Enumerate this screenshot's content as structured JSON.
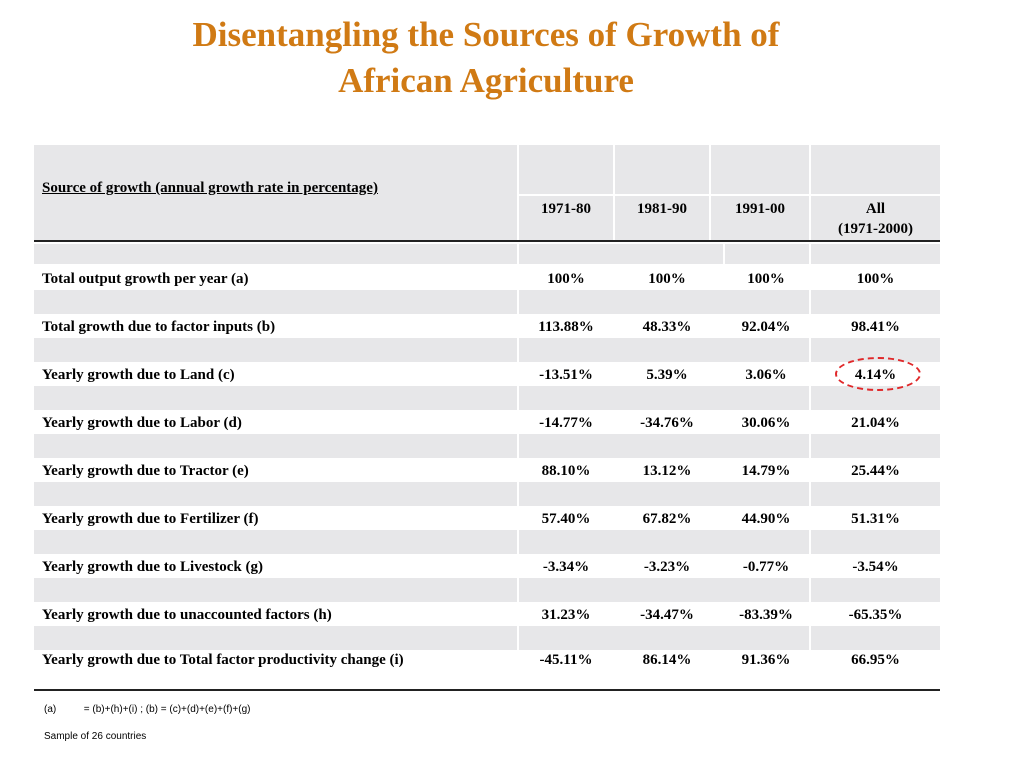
{
  "title": {
    "line1": "Disentangling the Sources of Growth of",
    "line2": "African Agriculture"
  },
  "table": {
    "header_label": "Source of growth (annual growth rate in percentage)",
    "columns": [
      "1971-80",
      "1981-90",
      "1991-00"
    ],
    "all_column": {
      "line1": "All",
      "line2": "(1971-2000)"
    },
    "rows": [
      {
        "label": "Total output growth per year  (a)",
        "values": [
          "100%",
          "100%",
          "100%",
          "100%"
        ]
      },
      {
        "label": "Total growth due to factor inputs  (b)",
        "values": [
          "113.88%",
          "48.33%",
          "92.04%",
          "98.41%"
        ]
      },
      {
        "label": "Yearly growth due to Land  (c)",
        "values": [
          "-13.51%",
          "5.39%",
          "3.06%",
          "4.14%"
        ]
      },
      {
        "label": "Yearly growth due to Labor  (d)",
        "values": [
          "-14.77%",
          "-34.76%",
          "30.06%",
          "21.04%"
        ]
      },
      {
        "label": "Yearly growth due to Tractor  (e)",
        "values": [
          "88.10%",
          "13.12%",
          "14.79%",
          "25.44%"
        ]
      },
      {
        "label": "Yearly growth due to Fertilizer  (f)",
        "values": [
          "57.40%",
          "67.82%",
          "44.90%",
          "51.31%"
        ]
      },
      {
        "label": "Yearly growth due to Livestock  (g)",
        "values": [
          "-3.34%",
          "-3.23%",
          "-0.77%",
          "-3.54%"
        ]
      },
      {
        "label": "Yearly growth due to unaccounted factors  (h)",
        "values": [
          "31.23%",
          "-34.47%",
          "-83.39%",
          "-65.35%"
        ]
      },
      {
        "label": "Yearly growth due to Total factor productivity change  (i)",
        "values": [
          "-45.11%",
          "86.14%",
          "91.36%",
          "66.95%"
        ]
      }
    ]
  },
  "highlight_color": "#E0282A",
  "title_color": "#D07A14",
  "footnotes": {
    "formula_marker": "(a)",
    "formula": "= (b)+(h)+(i)   ;  (b) = (c)+(d)+(e)+(f)+(g)",
    "sample": "Sample of 26 countries"
  }
}
